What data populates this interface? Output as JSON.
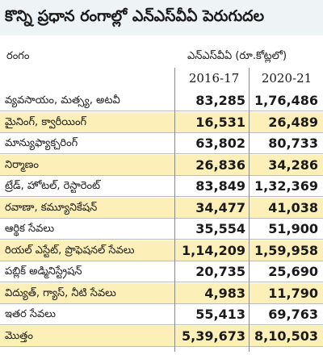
{
  "title": "కొన్ని ప్రధాన రంగాల్లో ఎన్‌ఎస్‌వీఏ పెరుగుదల",
  "table": {
    "header": {
      "sector": "రంగం",
      "unit": "ఎన్‌ఎస్‌వీఏ (రూ.కోట్లలో)",
      "years": [
        "2016-17",
        "2020-21"
      ]
    },
    "rows": [
      [
        "వ్యవసాయం, మత్స్య, అటవీ",
        "83,285",
        "1,76,486"
      ],
      [
        "మైనింగ్, క్వారీయింగ్",
        "16,531",
        "26,489"
      ],
      [
        "మాన్యుఫ్యాక్చరింగ్",
        "63,802",
        "80,733"
      ],
      [
        "నిర్మాణం",
        "26,836",
        "34,286"
      ],
      [
        "ట్రేడ్, హోటల్, రెస్టారెంట్",
        "83,849",
        "1,32,369"
      ],
      [
        "రవాణా, కమ్యూనికేషన్",
        "34,477",
        "41,038"
      ],
      [
        "ఆర్థిక సేవలు",
        "35,554",
        "51,900"
      ],
      [
        "రియల్ ఎస్టేట్, ప్రొఫెషనల్ సేవలు",
        "1,14,209",
        "1,59,958"
      ],
      [
        "పబ్లిక్ అడ్మినిస్ట్రేషన్",
        "20,735",
        "25,690"
      ],
      [
        "విద్యుత్, గ్యాస్, నీటి సేవలు",
        "4,983",
        "11,790"
      ],
      [
        "ఇతర సేవలు",
        "55,413",
        "69,763"
      ],
      [
        "మొత్తం",
        "5,39,673",
        "8,10,503"
      ]
    ]
  }
}
